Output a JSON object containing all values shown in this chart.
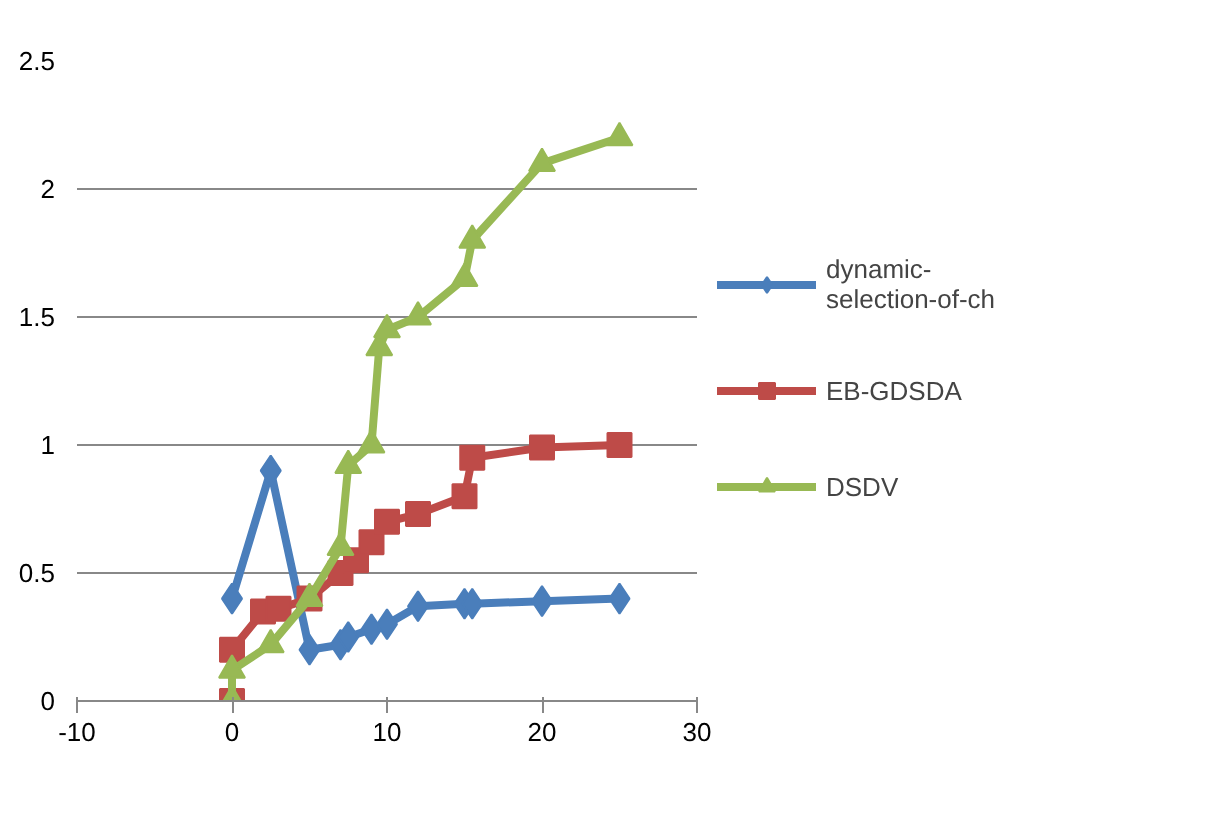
{
  "chart_data": {
    "type": "line",
    "xlim": [
      -10,
      30
    ],
    "xticks": [
      -10,
      0,
      10,
      20,
      30
    ],
    "ylim": [
      0,
      2.5
    ],
    "yticks": [
      0,
      0.5,
      1,
      1.5,
      2,
      2.5
    ],
    "grid": "y",
    "legend": "right",
    "line_style": "solid",
    "series": [
      {
        "name": "dynamic-selection-of-ch",
        "color": "#4a7ebb",
        "marker": "diamond",
        "x": [
          0,
          2.5,
          5,
          7,
          7.5,
          9,
          10,
          12,
          15,
          15.5,
          20,
          25
        ],
        "values": [
          0.4,
          0.9,
          0.2,
          0.22,
          0.25,
          0.28,
          0.3,
          0.37,
          0.38,
          0.38,
          0.39,
          0.4
        ]
      },
      {
        "name": "EB-GDSDA",
        "color": "#be4b48",
        "marker": "square",
        "x": [
          0,
          0,
          2,
          3,
          5,
          7,
          8,
          9,
          10,
          12,
          15,
          15.5,
          20,
          25
        ],
        "values": [
          0,
          0.2,
          0.35,
          0.36,
          0.4,
          0.5,
          0.55,
          0.62,
          0.7,
          0.73,
          0.8,
          0.95,
          0.99,
          1.0
        ]
      },
      {
        "name": "DSDV",
        "color": "#98b954",
        "marker": "triangle",
        "x": [
          0,
          0,
          2.5,
          5,
          7,
          7.5,
          9,
          9.5,
          10,
          12,
          15,
          15.5,
          20,
          25
        ],
        "values": [
          0,
          0.12,
          0.22,
          0.4,
          0.6,
          0.92,
          1.0,
          1.38,
          1.45,
          1.5,
          1.65,
          1.8,
          2.1,
          2.2
        ]
      }
    ]
  }
}
